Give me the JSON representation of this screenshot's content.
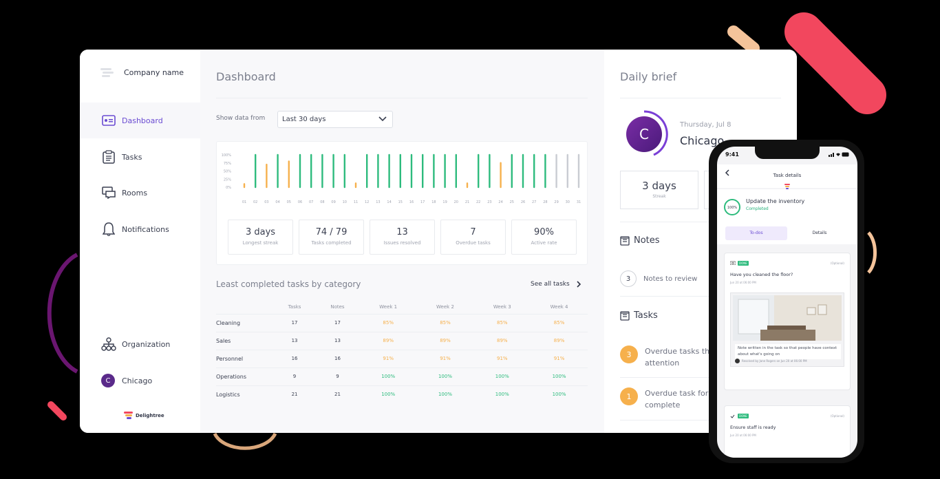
{
  "sidebar": {
    "company_name": "Company name",
    "items": [
      {
        "label": "Dashboard",
        "icon": "dashboard-icon"
      },
      {
        "label": "Tasks",
        "icon": "clipboard-icon"
      },
      {
        "label": "Rooms",
        "icon": "rooms-icon"
      },
      {
        "label": "Notifications",
        "icon": "bell-icon"
      },
      {
        "label": "Organization",
        "icon": "org-chart-icon"
      },
      {
        "label": "Chicago",
        "icon": "avatar",
        "initial": "C"
      }
    ],
    "brand": "Delightree"
  },
  "main": {
    "title": "Dashboard",
    "filter_label": "Show data from",
    "filter_value": "Last 30 days",
    "stats": [
      {
        "value": "3 days",
        "label": "Longest streak"
      },
      {
        "value": "74 / 79",
        "label": "Tasks completed"
      },
      {
        "value": "13",
        "label": "Issues resolved"
      },
      {
        "value": "7",
        "label": "Overdue tasks"
      },
      {
        "value": "90%",
        "label": "Active rate"
      }
    ],
    "least_title": "Least completed tasks by category",
    "see_all": "See all tasks",
    "table": {
      "headers": [
        "",
        "Tasks",
        "Notes",
        "Week 1",
        "Week 2",
        "Week 3",
        "Week 4"
      ],
      "rows": [
        {
          "cells": [
            "Cleaning",
            "17",
            "17",
            "85%",
            "85%",
            "85%",
            "85%"
          ],
          "status": "warn"
        },
        {
          "cells": [
            "Sales",
            "13",
            "13",
            "89%",
            "89%",
            "89%",
            "89%"
          ],
          "status": "warn"
        },
        {
          "cells": [
            "Personnel",
            "16",
            "16",
            "91%",
            "91%",
            "91%",
            "91%"
          ],
          "status": "warn"
        },
        {
          "cells": [
            "Operations",
            "9",
            "9",
            "100%",
            "100%",
            "100%",
            "100%"
          ],
          "status": "ok"
        },
        {
          "cells": [
            "Logistics",
            "21",
            "21",
            "100%",
            "100%",
            "100%",
            "100%"
          ],
          "status": "ok"
        }
      ]
    }
  },
  "chart_data": {
    "type": "bar",
    "y_ticks": [
      "100%",
      "75%",
      "50%",
      "25%",
      "0%"
    ],
    "ylim": [
      0,
      100
    ],
    "categories": [
      "01",
      "02",
      "03",
      "04",
      "05",
      "06",
      "07",
      "08",
      "09",
      "10",
      "11",
      "12",
      "13",
      "14",
      "15",
      "16",
      "17",
      "18",
      "19",
      "20",
      "21",
      "22",
      "23",
      "24",
      "25",
      "26",
      "27",
      "28",
      "29",
      "30",
      "31"
    ],
    "values": [
      10,
      100,
      70,
      100,
      80,
      100,
      100,
      100,
      100,
      100,
      12,
      100,
      100,
      100,
      100,
      100,
      100,
      100,
      100,
      100,
      12,
      100,
      100,
      75,
      100,
      100,
      100,
      100,
      100,
      100,
      100
    ],
    "status": [
      "warn",
      "ok",
      "warn",
      "ok",
      "warn",
      "ok",
      "ok",
      "ok",
      "ok",
      "ok",
      "warn",
      "ok",
      "ok",
      "ok",
      "ok",
      "ok",
      "ok",
      "ok",
      "ok",
      "ok",
      "warn",
      "ok",
      "ok",
      "warn",
      "ok",
      "ok",
      "ok",
      "ok",
      "none",
      "none",
      "none"
    ],
    "colors": {
      "ok": "#2dbb7d",
      "warn": "#f6b04c",
      "none": "#c9ccd2"
    }
  },
  "brief": {
    "title": "Daily brief",
    "avatar_initial": "C",
    "date": "Thursday, Jul 8",
    "city": "Chicago",
    "streak_value": "3 days",
    "streak_label": "Streak",
    "notes_title": "Notes",
    "notes_count": "3",
    "notes_text": "Notes to review",
    "tasks_title": "Tasks",
    "task_rows": [
      {
        "count": "3",
        "text1": "Overdue tasks tha",
        "text2": "attention"
      },
      {
        "count": "1",
        "text1": "Overdue task for",
        "text2": "complete"
      }
    ]
  },
  "phone": {
    "time": "9:41",
    "header_title": "Task details",
    "task_name": "Update the inventory",
    "task_progress": "100%",
    "task_status": "Completed",
    "tabs": [
      "To-dos",
      "Details"
    ],
    "cards": [
      {
        "badge": "DONE",
        "optional": "(Optional)",
        "question": "Have you cleaned the floor?",
        "date": "Jun 20 at 06:00 PM",
        "note": "Note written in the task so that people have context about what's going on",
        "resolved": "Resolved by Jane Rogers on Jun 20 at 06:00 PM"
      },
      {
        "badge": "DONE",
        "optional": "(Optional)",
        "question": "Ensure staff is ready",
        "date": "Jun 20 at 06:00 PM"
      }
    ]
  }
}
